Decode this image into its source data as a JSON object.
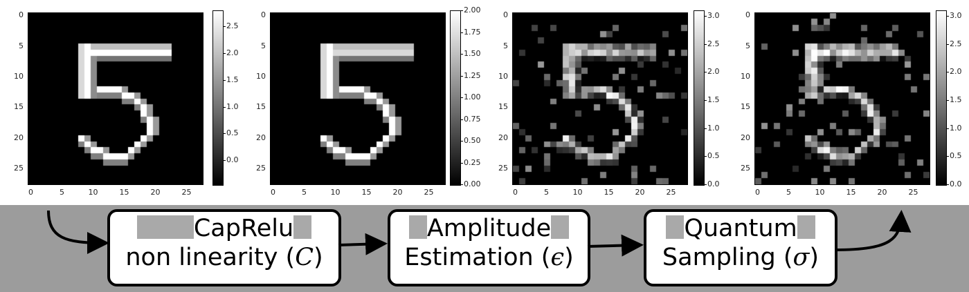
{
  "panels": [
    {
      "id": "p1",
      "cbar_ticks": [
        "2.5",
        "2.0",
        "1.5",
        "1.0",
        "0.5",
        "0.0"
      ],
      "cbar_range": [
        -0.45,
        2.8
      ],
      "noise": false,
      "top_bright": false
    },
    {
      "id": "p2",
      "cbar_ticks": [
        "2.00",
        "1.75",
        "1.50",
        "1.25",
        "1.00",
        "0.75",
        "0.50",
        "0.25",
        "0.00"
      ],
      "cbar_range": [
        0,
        2.0
      ],
      "noise": false,
      "top_bright": true
    },
    {
      "id": "p3",
      "cbar_ticks": [
        "3.0",
        "2.5",
        "2.0",
        "1.5",
        "1.0",
        "0.5",
        "0.0"
      ],
      "cbar_range": [
        0,
        3.1
      ],
      "noise": true,
      "top_bright": false
    },
    {
      "id": "p4",
      "cbar_ticks": [
        "3.0",
        "2.5",
        "2.0",
        "1.5",
        "1.0",
        "0.5",
        "0.0"
      ],
      "cbar_range": [
        0,
        3.1
      ],
      "noise": true,
      "top_bright": false
    }
  ],
  "axis": {
    "x_ticks": [
      "0",
      "5",
      "10",
      "15",
      "20",
      "25"
    ],
    "y_ticks": [
      "0",
      "5",
      "10",
      "15",
      "20",
      "25"
    ]
  },
  "steps": [
    {
      "line1": "CapRelu",
      "line2_text": "non linearity (",
      "line2_sym": "C",
      "close": ")"
    },
    {
      "line1": "Amplitude",
      "line2_text": "Estimation (",
      "line2_sym": "ϵ",
      "close": ")"
    },
    {
      "line1": "Quantum",
      "line2_text": "Sampling (",
      "line2_sym": "σ",
      "close": ")"
    }
  ]
}
